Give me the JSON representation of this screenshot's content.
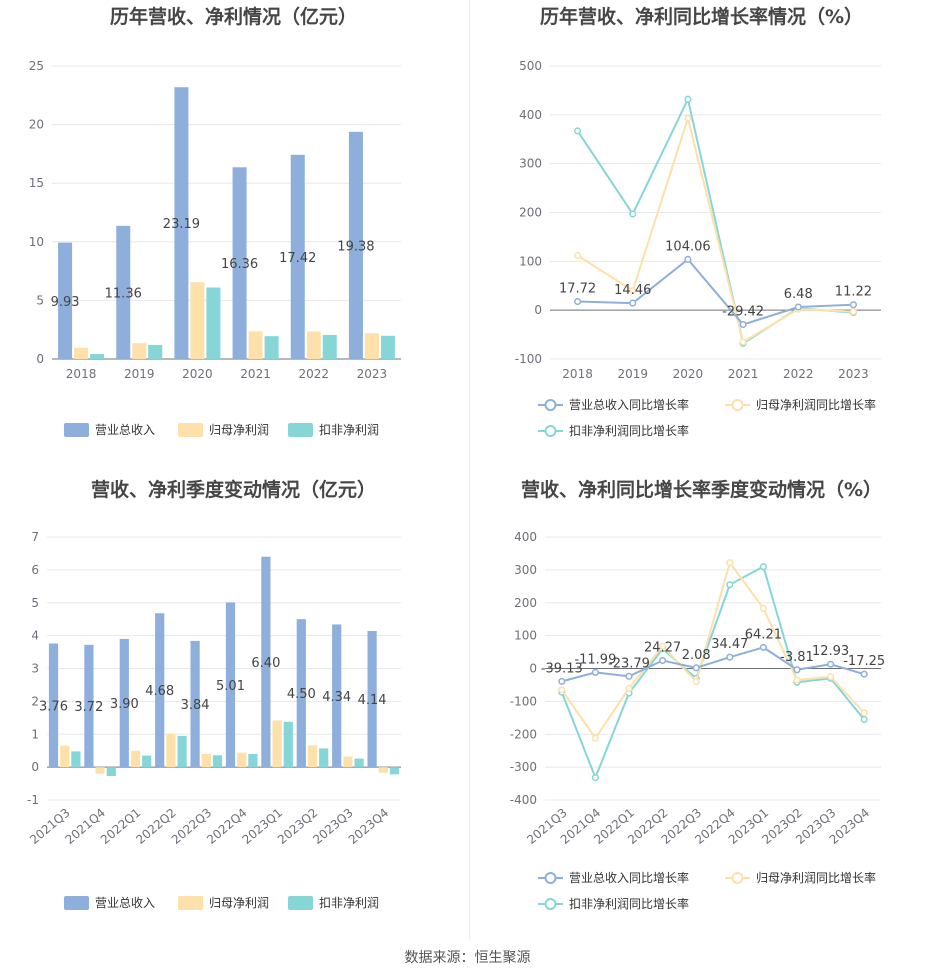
{
  "source_label": "数据来源：恒生聚源",
  "colors": {
    "revenue": "#8eaedc",
    "net_profit": "#fde0aa",
    "deducted_profit": "#86d6d7",
    "grid": "#e6e8ee",
    "axis_text": "#6e7079"
  },
  "chart_data": [
    {
      "type": "bar",
      "title": "历年营收、净利情况（亿元）",
      "categories": [
        "2018",
        "2019",
        "2020",
        "2021",
        "2022",
        "2023"
      ],
      "ylim": [
        0,
        25
      ],
      "yticks": [
        0,
        5,
        10,
        15,
        20,
        25
      ],
      "series": [
        {
          "name": "营业总收入",
          "values": [
            9.93,
            11.36,
            23.19,
            16.36,
            17.42,
            19.38
          ],
          "labels": [
            "9.93",
            "11.36",
            "23.19",
            "16.36",
            "17.42",
            "19.38"
          ]
        },
        {
          "name": "归母净利润",
          "values": [
            0.95,
            1.35,
            6.55,
            2.35,
            2.35,
            2.2
          ]
        },
        {
          "name": "扣非净利润",
          "values": [
            0.42,
            1.2,
            6.1,
            1.95,
            2.05,
            1.98
          ]
        }
      ],
      "legend": "bottom",
      "grid": true
    },
    {
      "type": "line",
      "title": "历年营收、净利同比增长率情况（%）",
      "categories": [
        "2018",
        "2019",
        "2020",
        "2021",
        "2022",
        "2023"
      ],
      "ylim": [
        -100,
        500
      ],
      "yticks": [
        -100,
        0,
        100,
        200,
        300,
        400,
        500
      ],
      "series": [
        {
          "name": "营业总收入同比增长率",
          "values": [
            17.72,
            14.46,
            104.06,
            -29.42,
            6.48,
            11.22
          ],
          "labels": [
            "17.72",
            "14.46",
            "104.06",
            "-29.42",
            "6.48",
            "11.22"
          ]
        },
        {
          "name": "归母净利润同比增长率",
          "values": [
            112,
            40,
            393,
            -65,
            2,
            -3
          ]
        },
        {
          "name": "扣非净利润同比增长率",
          "values": [
            367,
            197,
            432,
            -68,
            4,
            -5
          ]
        }
      ],
      "legend": "bottom",
      "grid": true
    },
    {
      "type": "bar",
      "title": "营收、净利季度变动情况（亿元）",
      "categories": [
        "2021Q3",
        "2021Q4",
        "2022Q1",
        "2022Q2",
        "2022Q3",
        "2022Q4",
        "2023Q1",
        "2023Q2",
        "2023Q3",
        "2023Q4"
      ],
      "ylim": [
        -1,
        7
      ],
      "yticks": [
        -1,
        0,
        1,
        2,
        3,
        4,
        5,
        6,
        7
      ],
      "series": [
        {
          "name": "营业总收入",
          "values": [
            3.76,
            3.72,
            3.9,
            4.68,
            3.84,
            5.01,
            6.4,
            4.5,
            4.34,
            4.14
          ],
          "labels": [
            "3.76",
            "3.72",
            "3.90",
            "4.68",
            "3.84",
            "5.01",
            "6.40",
            "4.50",
            "4.34",
            "4.14"
          ]
        },
        {
          "name": "归母净利润",
          "values": [
            0.65,
            -0.2,
            0.5,
            1.02,
            0.4,
            0.44,
            1.42,
            0.66,
            0.32,
            -0.17
          ]
        },
        {
          "name": "扣非净利润",
          "values": [
            0.48,
            -0.27,
            0.35,
            0.95,
            0.36,
            0.4,
            1.38,
            0.57,
            0.26,
            -0.22
          ]
        }
      ],
      "legend": "bottom",
      "grid": true
    },
    {
      "type": "line",
      "title": "营收、净利同比增长率季度变动情况（%）",
      "categories": [
        "2021Q3",
        "2021Q4",
        "2022Q1",
        "2022Q2",
        "2022Q3",
        "2022Q4",
        "2023Q1",
        "2023Q2",
        "2023Q3",
        "2023Q4"
      ],
      "ylim": [
        -400,
        400
      ],
      "yticks": [
        -400,
        -300,
        -200,
        -100,
        0,
        100,
        200,
        300,
        400
      ],
      "series": [
        {
          "name": "营业总收入同比增长率",
          "values": [
            -39.13,
            -11.99,
            -23.79,
            24.27,
            2.08,
            34.47,
            64.21,
            -3.81,
            12.93,
            -17.25
          ],
          "labels": [
            "-39.13",
            "-11.99",
            "-23.79",
            "24.27",
            "2.08",
            "34.47",
            "64.21",
            "-3.81",
            "12.93",
            "-17.25"
          ]
        },
        {
          "name": "归母净利润同比增长率",
          "values": [
            -65,
            -212,
            -60,
            68,
            -40,
            322,
            183,
            -35,
            -25,
            -135
          ]
        },
        {
          "name": "扣非净利润同比增长率",
          "values": [
            -72,
            -332,
            -75,
            60,
            -30,
            255,
            310,
            -42,
            -30,
            -155
          ]
        }
      ],
      "legend": "bottom",
      "grid": true
    }
  ]
}
